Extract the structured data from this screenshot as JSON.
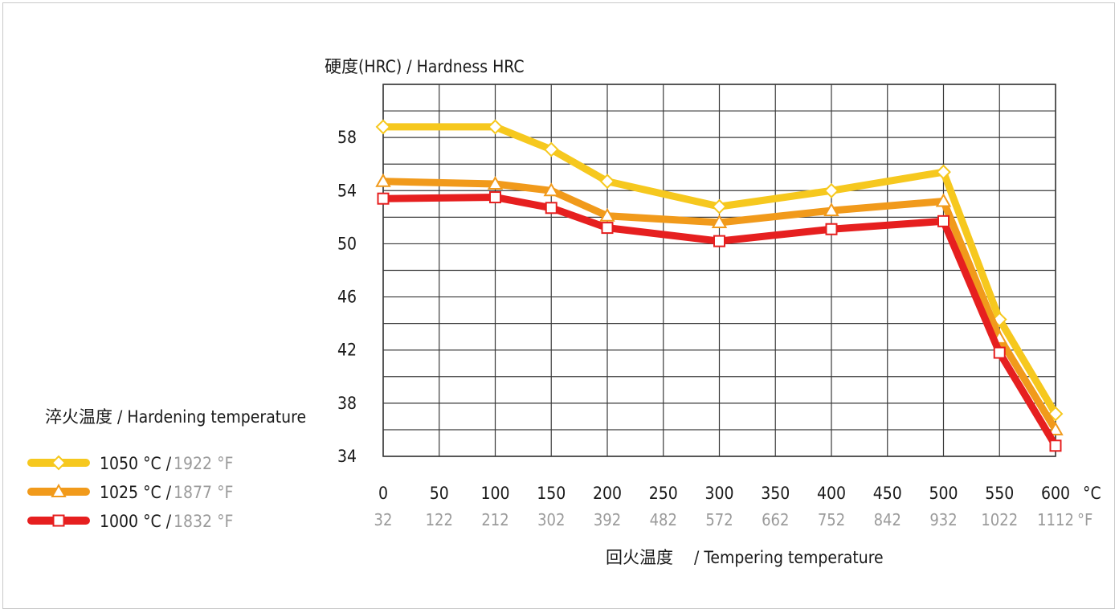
{
  "chart_data": {
    "type": "line",
    "ylabel": "硬度(HRC) / Hardness HRC",
    "xlabel_cn": "回火温度",
    "xlabel_en": "/ Tempering temperature",
    "x": [
      0,
      50,
      100,
      150,
      200,
      250,
      300,
      350,
      400,
      450,
      500,
      550,
      600
    ],
    "x_f": [
      "32",
      "122",
      "212",
      "302",
      "392",
      "482",
      "572",
      "662",
      "752",
      "842",
      "932",
      "1022",
      "1112"
    ],
    "x_unit_c": "°C",
    "x_unit_f": "°F",
    "xlim": [
      0,
      600
    ],
    "yticks": [
      34,
      38,
      42,
      46,
      50,
      54,
      58
    ],
    "ylim": [
      34,
      62
    ],
    "grid": true,
    "legend_title": "淬火温度 / Hardening temperature",
    "legend_position": "bottom-left",
    "series": [
      {
        "name": "1050 °C / 1922 °F",
        "label_c": "1050 °C /",
        "label_f": "1922 °F",
        "color": "#f6c81e",
        "marker": "diamond",
        "points": [
          [
            0,
            58.8
          ],
          [
            100,
            58.8
          ],
          [
            150,
            57.1
          ],
          [
            200,
            54.7
          ],
          [
            300,
            52.8
          ],
          [
            400,
            54.0
          ],
          [
            500,
            55.4
          ],
          [
            550,
            44.3
          ],
          [
            600,
            37.2
          ]
        ]
      },
      {
        "name": "1025 °C / 1877 °F",
        "label_c": "1025 °C /",
        "label_f": "1877 °F",
        "color": "#f19a1b",
        "marker": "triangle",
        "points": [
          [
            0,
            54.7
          ],
          [
            100,
            54.5
          ],
          [
            150,
            54.0
          ],
          [
            200,
            52.1
          ],
          [
            300,
            51.6
          ],
          [
            400,
            52.5
          ],
          [
            500,
            53.2
          ],
          [
            550,
            42.9
          ],
          [
            600,
            36.0
          ]
        ]
      },
      {
        "name": "1000 °C / 1832 °F",
        "label_c": "1000 °C /",
        "label_f": "1832 °F",
        "color": "#e61f1f",
        "marker": "square",
        "points": [
          [
            0,
            53.4
          ],
          [
            100,
            53.5
          ],
          [
            150,
            52.7
          ],
          [
            200,
            51.2
          ],
          [
            300,
            50.2
          ],
          [
            400,
            51.1
          ],
          [
            500,
            51.7
          ],
          [
            550,
            41.8
          ],
          [
            600,
            34.8
          ]
        ]
      }
    ]
  },
  "colors": {
    "grid": "#3a3a3a",
    "axis_text": "#1a1a1a",
    "fahrenheit_text": "#9b9b9b",
    "frame": "#c9c9c9"
  }
}
